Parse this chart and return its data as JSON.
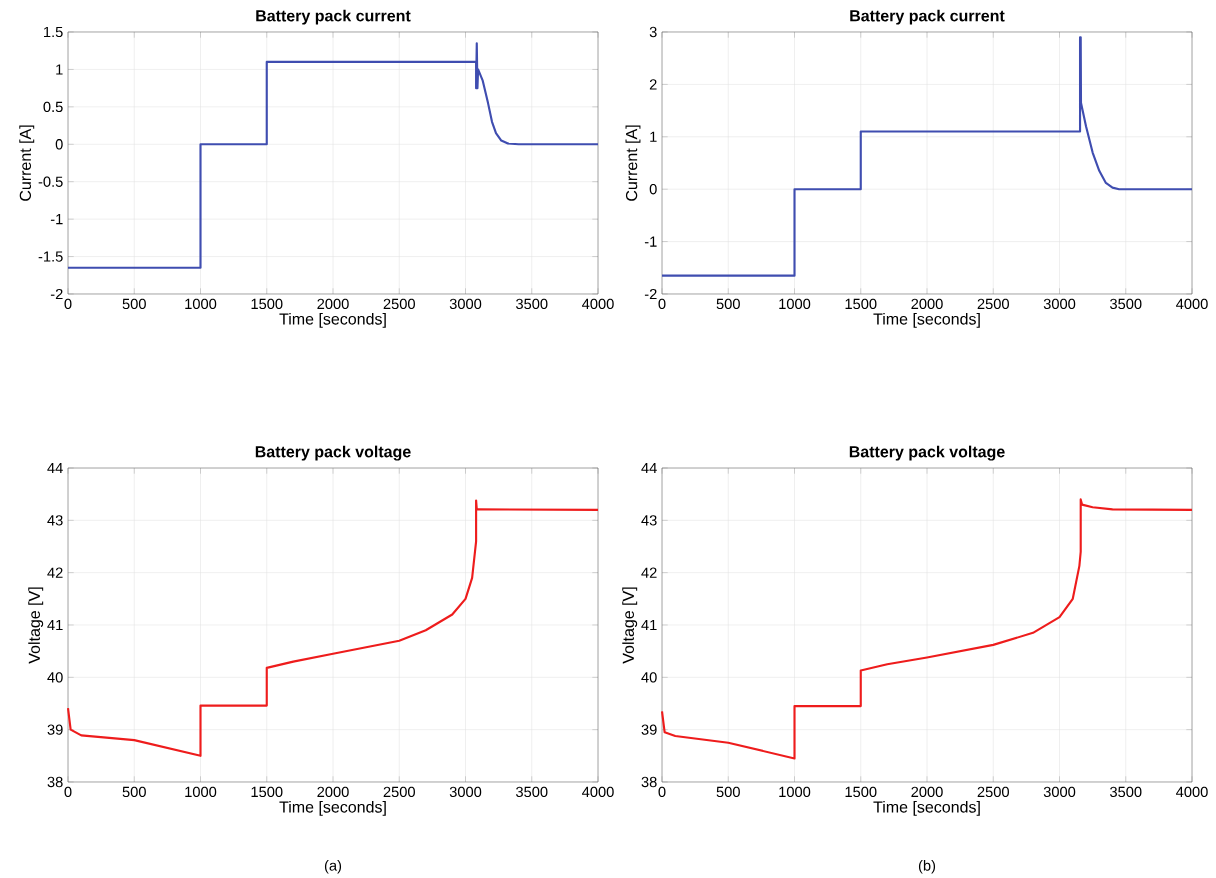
{
  "chart_data": [
    {
      "type": "line",
      "title": "Battery pack current",
      "xlabel": "Time [seconds]",
      "ylabel": "Current [A]",
      "grid": true,
      "xlim": [
        0,
        4000
      ],
      "ylim": [
        -2,
        1.5
      ],
      "xticks": [
        0,
        500,
        1000,
        1500,
        2000,
        2500,
        3000,
        3500,
        4000
      ],
      "yticks": [
        -2,
        -1.5,
        -1,
        -0.5,
        0,
        0.5,
        1,
        1.5
      ],
      "series": [
        {
          "color": "#3f4db0",
          "x": [
            0,
            1000,
            1000,
            1500,
            1500,
            3080,
            3080,
            3085,
            3090,
            3095,
            3130,
            3170,
            3200,
            3230,
            3270,
            3320,
            3400,
            4000
          ],
          "values": [
            -1.65,
            -1.65,
            0,
            0,
            1.1,
            1.1,
            0.75,
            1.35,
            0.75,
            1.0,
            0.85,
            0.55,
            0.3,
            0.15,
            0.05,
            0.01,
            0,
            0
          ]
        }
      ]
    },
    {
      "type": "line",
      "title": "Battery pack current",
      "xlabel": "Time [seconds]",
      "ylabel": "Current [A]",
      "grid": true,
      "xlim": [
        0,
        4000
      ],
      "ylim": [
        -2,
        3
      ],
      "xticks": [
        0,
        500,
        1000,
        1500,
        2000,
        2500,
        3000,
        3500,
        4000
      ],
      "yticks": [
        -2,
        -1,
        0,
        1,
        2,
        3
      ],
      "series": [
        {
          "color": "#3f4db0",
          "x": [
            0,
            1000,
            1000,
            1500,
            1500,
            3155,
            3155,
            3160,
            3162,
            3200,
            3250,
            3300,
            3350,
            3400,
            3450,
            4000
          ],
          "values": [
            -1.65,
            -1.65,
            0,
            0,
            1.1,
            1.1,
            2.9,
            2.9,
            1.65,
            1.2,
            0.7,
            0.35,
            0.12,
            0.03,
            0,
            0
          ]
        }
      ]
    },
    {
      "type": "line",
      "title": "Battery pack voltage",
      "xlabel": "Time [seconds]",
      "ylabel": "Voltage [V]",
      "grid": true,
      "xlim": [
        0,
        4000
      ],
      "ylim": [
        38,
        44
      ],
      "xticks": [
        0,
        500,
        1000,
        1500,
        2000,
        2500,
        3000,
        3500,
        4000
      ],
      "yticks": [
        38,
        39,
        40,
        41,
        42,
        43,
        44
      ],
      "annotations": [
        "(a)"
      ],
      "series": [
        {
          "color": "#ee1c1c",
          "x": [
            0,
            20,
            100,
            500,
            1000,
            1000,
            1500,
            1500,
            1700,
            2000,
            2500,
            2700,
            2900,
            3000,
            3050,
            3080,
            3080,
            3085,
            3095,
            4000
          ],
          "values": [
            39.41,
            39.0,
            38.89,
            38.8,
            38.5,
            39.46,
            39.46,
            40.18,
            40.3,
            40.45,
            40.7,
            40.9,
            41.2,
            41.5,
            41.9,
            42.6,
            43.38,
            43.21,
            43.21,
            43.2
          ]
        }
      ]
    },
    {
      "type": "line",
      "title": "Battery pack voltage",
      "xlabel": "Time [seconds]",
      "ylabel": "Voltage [V]",
      "grid": true,
      "xlim": [
        0,
        4000
      ],
      "ylim": [
        38,
        44
      ],
      "xticks": [
        0,
        500,
        1000,
        1500,
        2000,
        2500,
        3000,
        3500,
        4000
      ],
      "yticks": [
        38,
        39,
        40,
        41,
        42,
        43,
        44
      ],
      "annotations": [
        "(b)"
      ],
      "series": [
        {
          "color": "#ee1c1c",
          "x": [
            0,
            20,
            100,
            500,
            1000,
            1000,
            1500,
            1500,
            1700,
            2000,
            2500,
            2800,
            3000,
            3100,
            3150,
            3160,
            3160,
            3170,
            3250,
            3400,
            4000
          ],
          "values": [
            39.35,
            38.95,
            38.88,
            38.75,
            38.45,
            39.45,
            39.45,
            40.13,
            40.25,
            40.38,
            40.62,
            40.85,
            41.15,
            41.5,
            42.13,
            42.4,
            43.4,
            43.3,
            43.25,
            43.21,
            43.2
          ]
        }
      ]
    }
  ]
}
